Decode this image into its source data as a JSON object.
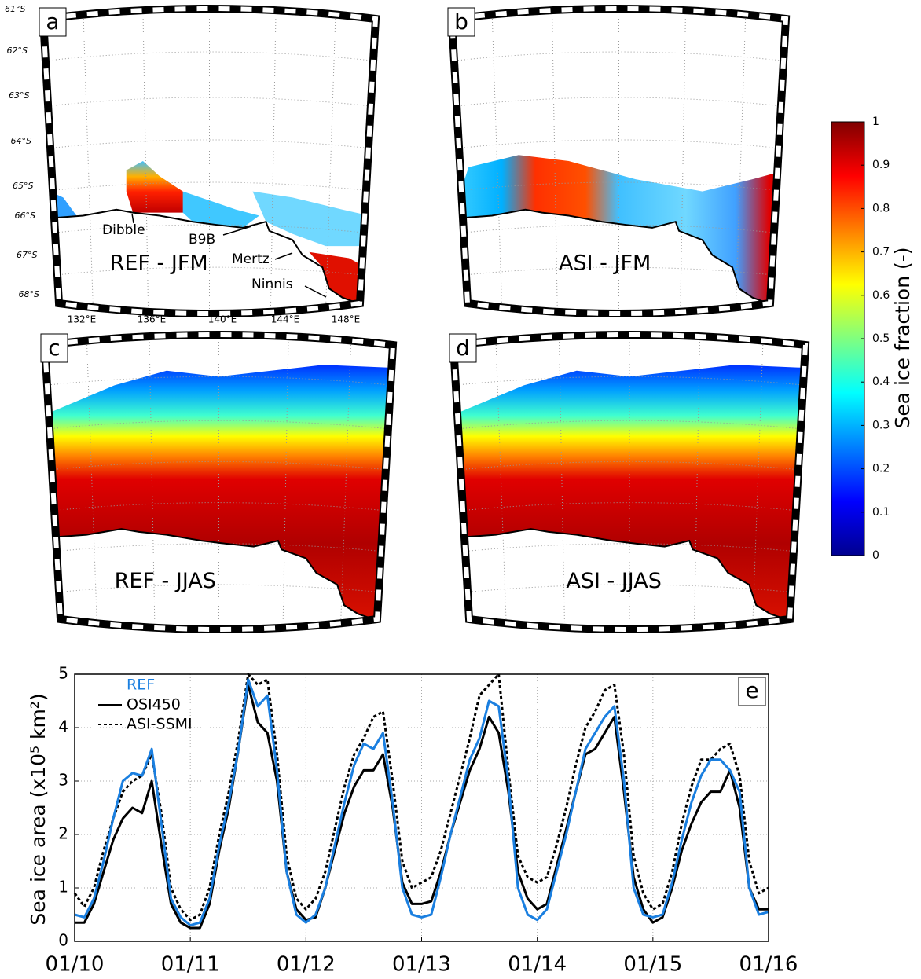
{
  "maps": [
    {
      "panel": "a",
      "label": "REF - JFM"
    },
    {
      "panel": "b",
      "label": "ASI - JFM"
    },
    {
      "panel": "c",
      "label": "REF - JJAS"
    },
    {
      "panel": "d",
      "label": "ASI - JJAS"
    }
  ],
  "latitude_labels": [
    "61°S",
    "62°S",
    "63°S",
    "64°S",
    "65°S",
    "66°S",
    "67°S",
    "68°S"
  ],
  "longitude_labels": [
    "132°E",
    "136°E",
    "140°E",
    "144°E",
    "148°E"
  ],
  "place_names": [
    "Dibble",
    "B9B",
    "Mertz",
    "Ninnis"
  ],
  "chart_data": [
    {
      "type": "colorbar",
      "ylabel": "Sea ice fraction (-)",
      "ylim": [
        0,
        1
      ],
      "yticks": [
        0,
        0.1,
        0.2,
        0.3,
        0.4,
        0.5,
        0.6,
        0.7,
        0.8,
        0.9,
        1
      ]
    },
    {
      "type": "line",
      "panel": "e",
      "ylabel": "Sea ice area (x10⁵ km²)",
      "x": [
        "01/10",
        "02/10",
        "03/10",
        "04/10",
        "05/10",
        "06/10",
        "07/10",
        "08/10",
        "09/10",
        "10/10",
        "11/10",
        "12/10",
        "01/11",
        "02/11",
        "03/11",
        "04/11",
        "05/11",
        "06/11",
        "07/11",
        "08/11",
        "09/11",
        "10/11",
        "11/11",
        "12/11",
        "01/12",
        "02/12",
        "03/12",
        "04/12",
        "05/12",
        "06/12",
        "07/12",
        "08/12",
        "09/12",
        "10/12",
        "11/12",
        "12/12",
        "01/13",
        "02/13",
        "03/13",
        "04/13",
        "05/13",
        "06/13",
        "07/13",
        "08/13",
        "09/13",
        "10/13",
        "11/13",
        "12/13",
        "01/14",
        "02/14",
        "03/14",
        "04/14",
        "05/14",
        "06/14",
        "07/14",
        "08/14",
        "09/14",
        "10/14",
        "11/14",
        "12/14",
        "01/15",
        "02/15",
        "03/15",
        "04/15",
        "05/15",
        "06/15",
        "07/15",
        "08/15",
        "09/15",
        "10/15",
        "11/15",
        "12/15",
        "01/16"
      ],
      "xticks": [
        "01/10",
        "01/11",
        "01/12",
        "01/13",
        "01/14",
        "01/15",
        "01/16"
      ],
      "ylim": [
        0,
        5
      ],
      "yticks": [
        0,
        1,
        2,
        3,
        4,
        5
      ],
      "grid": true,
      "legend": "upper left",
      "series": [
        {
          "name": "REF",
          "color": "#1a7fe0",
          "style": "solid",
          "values": [
            0.5,
            0.45,
            0.8,
            1.5,
            2.3,
            3.0,
            3.15,
            3.1,
            3.6,
            2.2,
            0.8,
            0.45,
            0.3,
            0.35,
            0.8,
            1.8,
            2.6,
            3.6,
            4.9,
            4.4,
            4.6,
            3.2,
            1.3,
            0.5,
            0.35,
            0.5,
            1.0,
            1.8,
            2.6,
            3.3,
            3.7,
            3.6,
            3.9,
            2.6,
            1.0,
            0.5,
            0.45,
            0.5,
            1.2,
            2.0,
            2.7,
            3.4,
            3.8,
            4.5,
            4.4,
            3.0,
            1.0,
            0.5,
            0.4,
            0.6,
            1.3,
            2.0,
            2.8,
            3.6,
            3.9,
            4.2,
            4.4,
            3.0,
            1.0,
            0.5,
            0.45,
            0.5,
            1.1,
            1.9,
            2.6,
            3.1,
            3.4,
            3.4,
            3.2,
            2.8,
            1.0,
            0.5,
            0.55
          ]
        },
        {
          "name": "OSI450",
          "color": "#000000",
          "style": "solid",
          "values": [
            0.35,
            0.35,
            0.7,
            1.3,
            1.9,
            2.3,
            2.5,
            2.4,
            3.0,
            1.8,
            0.7,
            0.35,
            0.25,
            0.25,
            0.7,
            1.7,
            2.5,
            3.6,
            4.8,
            4.1,
            3.9,
            3.0,
            1.3,
            0.6,
            0.4,
            0.45,
            1.0,
            1.7,
            2.4,
            2.9,
            3.2,
            3.2,
            3.5,
            2.5,
            1.1,
            0.7,
            0.7,
            0.75,
            1.3,
            2.0,
            2.6,
            3.2,
            3.6,
            4.2,
            3.9,
            2.8,
            1.3,
            0.8,
            0.6,
            0.7,
            1.4,
            2.1,
            2.8,
            3.5,
            3.6,
            3.9,
            4.2,
            2.8,
            1.2,
            0.6,
            0.35,
            0.45,
            1.0,
            1.7,
            2.2,
            2.6,
            2.8,
            2.8,
            3.2,
            2.5,
            1.0,
            0.6,
            0.6
          ]
        },
        {
          "name": "ASI-SSMI",
          "color": "#000000",
          "style": "dotted",
          "values": [
            0.9,
            0.65,
            1.0,
            1.7,
            2.3,
            2.8,
            3.0,
            3.1,
            3.5,
            2.4,
            1.0,
            0.6,
            0.4,
            0.5,
            1.0,
            2.0,
            2.8,
            3.8,
            5.0,
            4.8,
            4.9,
            3.5,
            1.6,
            0.8,
            0.6,
            0.8,
            1.3,
            2.1,
            2.9,
            3.5,
            3.8,
            4.2,
            4.3,
            3.0,
            1.5,
            1.0,
            1.1,
            1.2,
            1.7,
            2.4,
            3.1,
            3.8,
            4.6,
            4.8,
            5.0,
            3.2,
            1.6,
            1.2,
            1.1,
            1.2,
            1.8,
            2.5,
            3.3,
            4.0,
            4.3,
            4.7,
            4.8,
            3.5,
            1.6,
            0.9,
            0.6,
            0.7,
            1.3,
            2.2,
            2.9,
            3.4,
            3.4,
            3.6,
            3.7,
            3.1,
            1.5,
            0.9,
            1.0
          ]
        }
      ]
    }
  ]
}
